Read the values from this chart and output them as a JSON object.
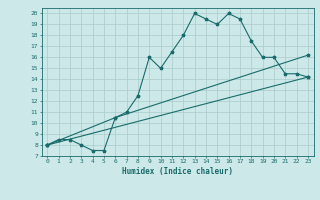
{
  "xlabel": "Humidex (Indice chaleur)",
  "ylabel": "",
  "bg_color": "#cce8e8",
  "grid_color": "#aacccc",
  "line_color": "#1a6b6b",
  "xlim": [
    -0.5,
    23.5
  ],
  "ylim": [
    7,
    20.5
  ],
  "xticks": [
    0,
    1,
    2,
    3,
    4,
    5,
    6,
    7,
    8,
    9,
    10,
    11,
    12,
    13,
    14,
    15,
    16,
    17,
    18,
    19,
    20,
    21,
    22,
    23
  ],
  "yticks": [
    7,
    8,
    9,
    10,
    11,
    12,
    13,
    14,
    15,
    16,
    17,
    18,
    19,
    20
  ],
  "line1_x": [
    0,
    1,
    2,
    3,
    4,
    5,
    6,
    7,
    8,
    9,
    10,
    11,
    12,
    13,
    14,
    15,
    16,
    17,
    18,
    19,
    20,
    21,
    22,
    23
  ],
  "line1_y": [
    8.0,
    8.5,
    8.5,
    8.0,
    7.5,
    7.5,
    10.5,
    11.0,
    12.5,
    16.0,
    15.0,
    16.5,
    18.0,
    20.0,
    19.5,
    19.0,
    20.0,
    19.5,
    17.5,
    16.0,
    16.0,
    14.5,
    14.5,
    14.2
  ],
  "line2_x": [
    0,
    6,
    23
  ],
  "line2_y": [
    8.0,
    10.5,
    16.2
  ],
  "line3_x": [
    0,
    23
  ],
  "line3_y": [
    8.0,
    14.2
  ]
}
